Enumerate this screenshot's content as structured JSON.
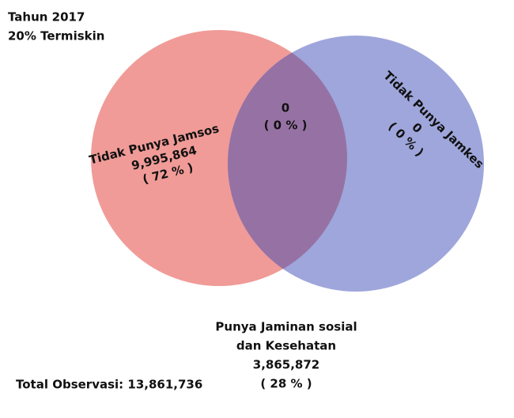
{
  "header": {
    "year": "Tahun 2017",
    "group": "20% Termiskin"
  },
  "sets": {
    "left": {
      "label": "Tidak Punya Jamsos",
      "count": "9,995,864",
      "percent": "( 72 % )"
    },
    "overlap": {
      "count": "0",
      "percent": "( 0 % )"
    },
    "right": {
      "label": "Tidak Punya Jamkes",
      "count": "0",
      "percent": "( 0 % )"
    }
  },
  "outside": {
    "line1": "Punya Jaminan sosial",
    "line2": "dan Kesehatan",
    "count": "3,865,872",
    "percent": "( 28 % )"
  },
  "footer": {
    "total": "Total Observasi: 13,861,736"
  }
}
